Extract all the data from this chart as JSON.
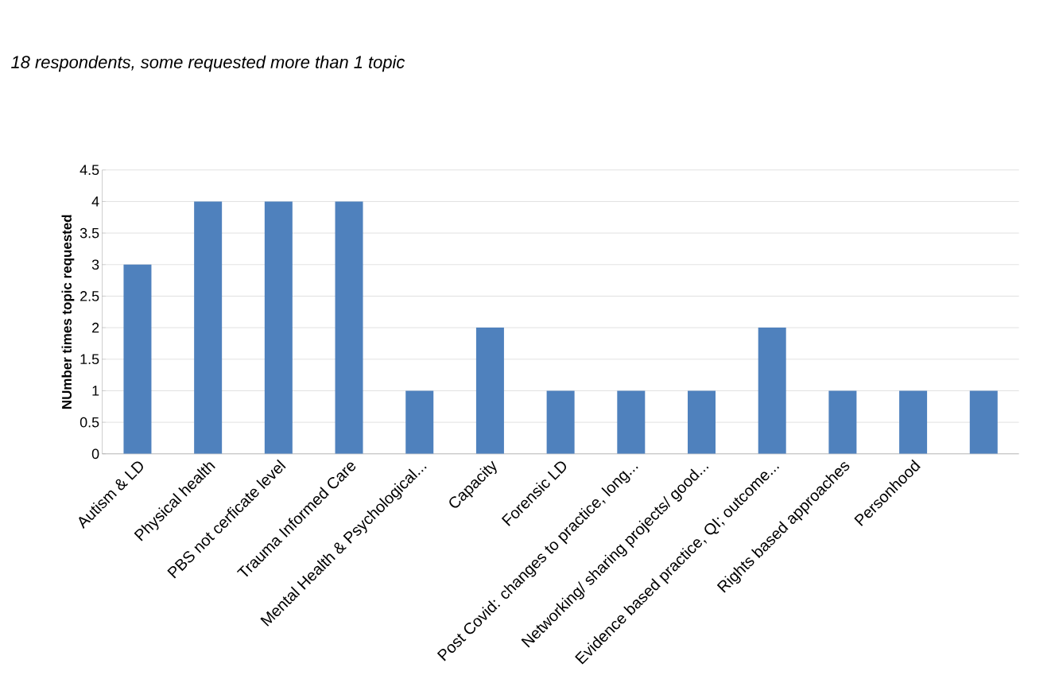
{
  "chart_data": {
    "type": "bar",
    "title": "18 respondents, some requested more than 1 topic",
    "ylabel": "NUmber times topic requested",
    "categories": [
      "Autism & LD",
      "Physical health",
      "PBS not cerficate level",
      "Trauma Informed Care",
      "Mental Health & Psychological...",
      "Capacity",
      "Forensic LD",
      "Post Covid: changes to practice, long...",
      "Networking/ sharing projects/ good...",
      "Evidence based practice, QI; outcome...",
      "Rights based approaches",
      "Personhood",
      null
    ],
    "values": [
      3,
      4,
      4,
      4,
      1,
      2,
      1,
      1,
      1,
      2,
      1,
      1,
      1
    ],
    "color": "#4f81bd",
    "ylim": [
      0,
      4.5
    ],
    "yticks": [
      0,
      0.5,
      1,
      1.5,
      2,
      2.5,
      3,
      3.5,
      4,
      4.5
    ],
    "grid": "y"
  }
}
